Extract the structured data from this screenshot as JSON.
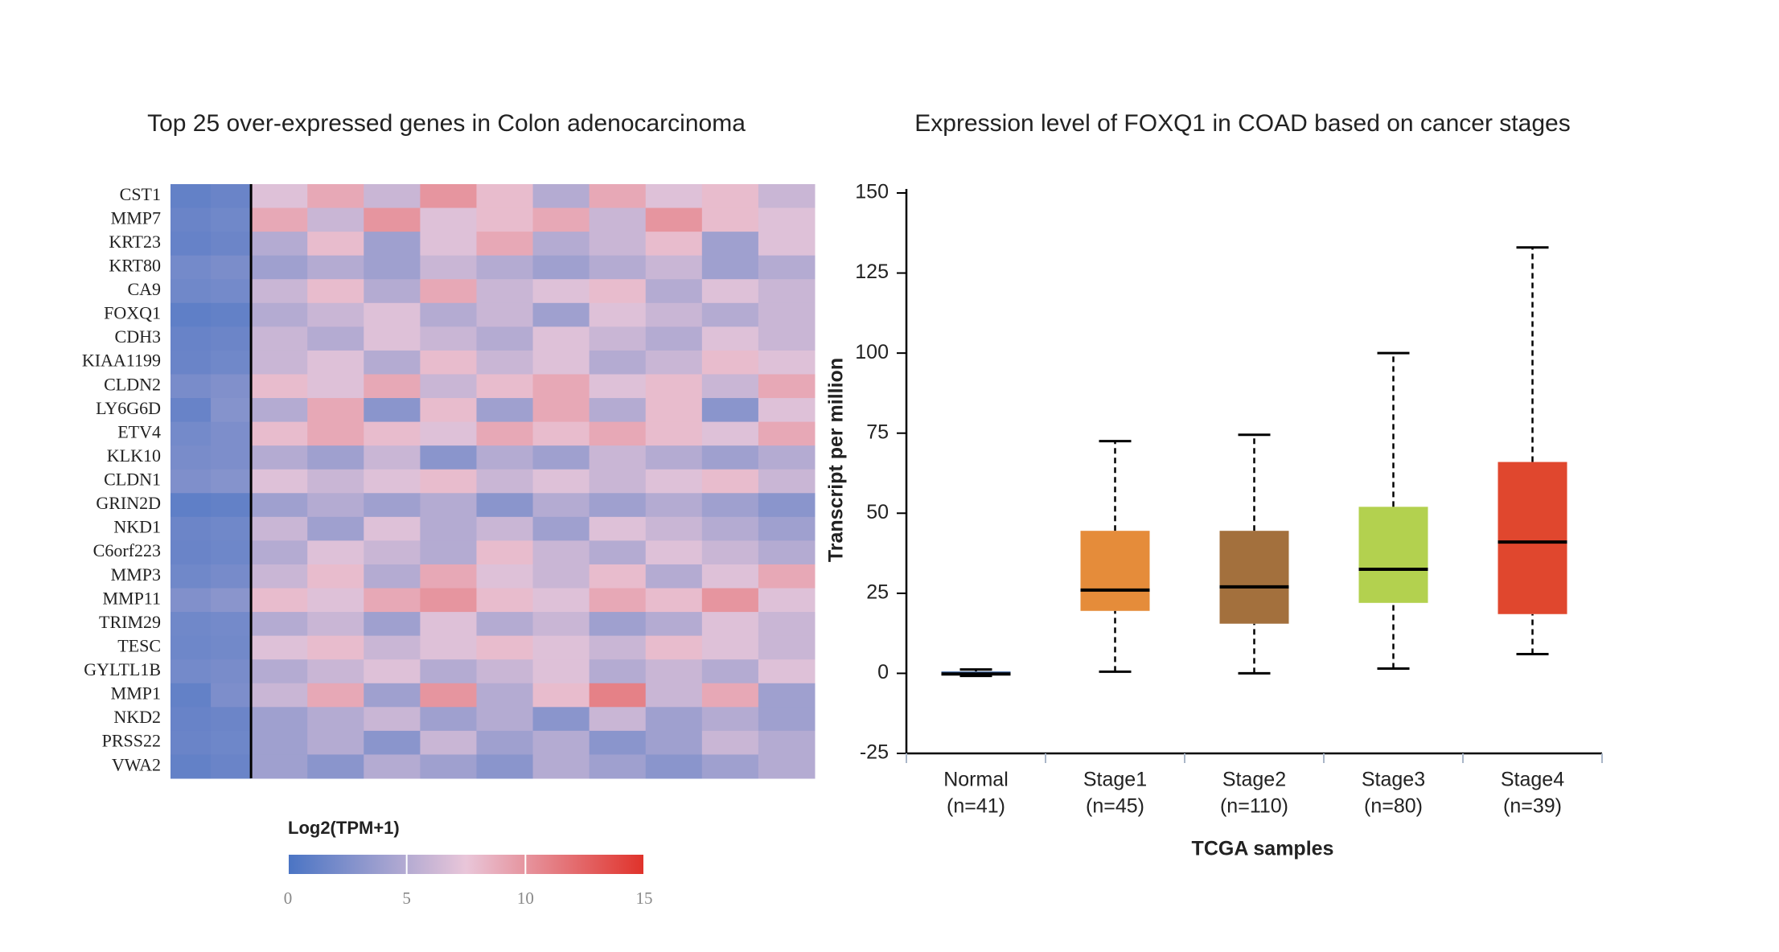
{
  "chart_data": [
    {
      "type": "heatmap",
      "title": "Top 25 over-expressed genes in Colon adenocarcinoma",
      "rows": [
        "CST1",
        "MMP7",
        "KRT23",
        "KRT80",
        "CA9",
        "FOXQ1",
        "CDH3",
        "KIAA1199",
        "CLDN2",
        "LY6G6D",
        "ETV4",
        "KLK10",
        "CLDN1",
        "GRIN2D",
        "NKD1",
        "C6orf223",
        "MMP3",
        "MMP11",
        "TRIM29",
        "TESC",
        "GYLTL1B",
        "MMP1",
        "NKD2",
        "PRSS22",
        "VWA2"
      ],
      "z": [
        [
          1.2,
          1.5,
          7,
          9,
          6,
          10,
          8,
          5,
          9,
          7,
          8,
          6
        ],
        [
          1.5,
          1.8,
          9,
          6,
          10,
          7,
          8,
          9,
          6,
          10,
          8,
          7
        ],
        [
          1.3,
          1.6,
          5,
          8,
          4,
          7,
          9,
          5,
          6,
          8,
          4,
          7
        ],
        [
          2.0,
          2.3,
          4,
          5,
          4,
          6,
          5,
          4,
          5,
          6,
          4,
          5
        ],
        [
          1.8,
          2.0,
          6,
          8,
          5,
          9,
          6,
          7,
          8,
          5,
          7,
          6
        ],
        [
          1.0,
          1.2,
          5,
          6,
          7,
          5,
          6,
          4,
          7,
          6,
          5,
          6
        ],
        [
          1.4,
          1.6,
          6,
          5,
          7,
          6,
          5,
          7,
          6,
          5,
          7,
          6
        ],
        [
          1.5,
          1.8,
          6,
          7,
          5,
          8,
          6,
          7,
          5,
          6,
          8,
          7
        ],
        [
          2.2,
          2.6,
          8,
          7,
          9,
          6,
          8,
          9,
          7,
          8,
          6,
          9
        ],
        [
          1.4,
          2.8,
          5,
          9,
          3,
          8,
          4,
          9,
          5,
          8,
          3,
          7
        ],
        [
          2.0,
          2.4,
          8,
          9,
          8,
          7,
          9,
          8,
          9,
          8,
          7,
          9
        ],
        [
          2.2,
          2.4,
          5,
          4,
          6,
          3,
          5,
          4,
          6,
          5,
          4,
          5
        ],
        [
          2.5,
          2.8,
          7,
          6,
          7,
          8,
          6,
          7,
          6,
          7,
          8,
          6
        ],
        [
          1.0,
          1.2,
          4,
          5,
          4,
          5,
          3,
          5,
          4,
          5,
          4,
          3
        ],
        [
          1.6,
          1.8,
          6,
          4,
          7,
          5,
          6,
          4,
          7,
          6,
          5,
          4
        ],
        [
          1.5,
          1.7,
          5,
          7,
          6,
          5,
          8,
          6,
          5,
          7,
          6,
          5
        ],
        [
          1.8,
          2.1,
          6,
          8,
          5,
          9,
          7,
          6,
          8,
          5,
          7,
          9
        ],
        [
          2.6,
          3.0,
          8,
          7,
          9,
          10,
          8,
          7,
          9,
          8,
          10,
          7
        ],
        [
          1.8,
          2.0,
          5,
          6,
          4,
          7,
          5,
          6,
          4,
          5,
          7,
          6
        ],
        [
          1.7,
          1.9,
          7,
          8,
          6,
          7,
          8,
          7,
          6,
          8,
          7,
          6
        ],
        [
          2.0,
          2.2,
          5,
          6,
          7,
          5,
          6,
          7,
          5,
          6,
          5,
          7
        ],
        [
          1.2,
          2.4,
          6,
          9,
          4,
          10,
          5,
          8,
          11,
          6,
          9,
          4
        ],
        [
          1.4,
          1.6,
          4,
          5,
          6,
          4,
          5,
          3,
          6,
          4,
          5,
          4
        ],
        [
          1.5,
          1.7,
          4,
          5,
          3,
          6,
          4,
          5,
          3,
          4,
          6,
          5
        ],
        [
          1.2,
          1.5,
          4,
          3,
          5,
          4,
          3,
          5,
          4,
          3,
          4,
          5
        ]
      ],
      "colorbar_label": "Log2(TPM+1)",
      "zlim": [
        0,
        15
      ],
      "colorbar_ticks": [
        0,
        5,
        10,
        15
      ],
      "colorscale": [
        "#4a74c4",
        "#e9c6d9",
        "#e0322a"
      ]
    },
    {
      "type": "box",
      "title": "Expression level of FOXQ1 in COAD based on cancer stages",
      "categories": [
        "Normal",
        "Stage1",
        "Stage2",
        "Stage3",
        "Stage4"
      ],
      "n_labels": [
        "(n=41)",
        "(n=45)",
        "(n=110)",
        "(n=80)",
        "(n=39)"
      ],
      "min": [
        -0.8,
        0.5,
        0,
        1.5,
        6
      ],
      "q1": [
        -0.6,
        19.5,
        15.5,
        22,
        18.5
      ],
      "median": [
        -0.2,
        26,
        27,
        32.5,
        41
      ],
      "q3": [
        0.6,
        44.5,
        44.5,
        52,
        66
      ],
      "max": [
        1.2,
        72.5,
        74.5,
        100,
        133
      ],
      "colors": [
        "#4a6fa8",
        "#e58c3a",
        "#a3703d",
        "#b3d14f",
        "#e0472e"
      ],
      "ylabel": "Transcript per million",
      "xlabel": "TCGA samples",
      "ylim": [
        -25,
        150
      ],
      "yticks": [
        -25,
        0,
        25,
        50,
        75,
        100,
        125,
        150
      ]
    }
  ]
}
